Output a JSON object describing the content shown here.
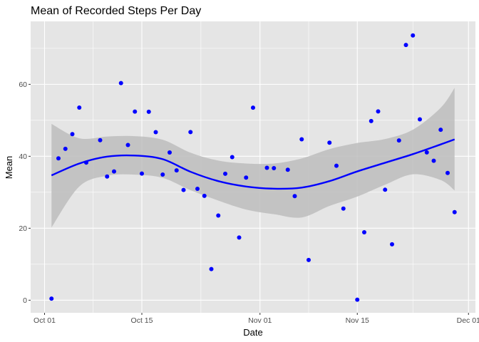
{
  "chart_data": {
    "type": "scatter",
    "title": "Mean of Recorded Steps Per Day",
    "xlabel": "Date",
    "ylabel": "Mean",
    "x_ticks": [
      "Oct 01",
      "Oct 15",
      "Nov 01",
      "Nov 15",
      "Dec 01"
    ],
    "x_tick_dates": [
      "2012-10-01",
      "2012-10-15",
      "2012-11-01",
      "2012-11-15",
      "2012-12-01"
    ],
    "y_ticks": [
      0,
      20,
      40,
      60
    ],
    "xlim": [
      "2012-09-29",
      "2012-12-02"
    ],
    "ylim": [
      -3.5,
      77.5
    ],
    "grid": true,
    "colors": {
      "panel": "#e5e5e5",
      "grid": "#ffffff",
      "points": "#0000ff",
      "smooth_line": "#0000ff",
      "ribbon": "#bdbdbd"
    },
    "series": [
      {
        "type": "points",
        "x": [
          "2012-10-02",
          "2012-10-03",
          "2012-10-04",
          "2012-10-05",
          "2012-10-06",
          "2012-10-07",
          "2012-10-09",
          "2012-10-10",
          "2012-10-11",
          "2012-10-12",
          "2012-10-13",
          "2012-10-14",
          "2012-10-15",
          "2012-10-16",
          "2012-10-17",
          "2012-10-18",
          "2012-10-19",
          "2012-10-20",
          "2012-10-21",
          "2012-10-22",
          "2012-10-23",
          "2012-10-24",
          "2012-10-25",
          "2012-10-26",
          "2012-10-27",
          "2012-10-28",
          "2012-10-29",
          "2012-10-30",
          "2012-10-31",
          "2012-11-02",
          "2012-11-03",
          "2012-11-05",
          "2012-11-06",
          "2012-11-07",
          "2012-11-08",
          "2012-11-11",
          "2012-11-12",
          "2012-11-13",
          "2012-11-15",
          "2012-11-16",
          "2012-11-17",
          "2012-11-18",
          "2012-11-19",
          "2012-11-20",
          "2012-11-21",
          "2012-11-22",
          "2012-11-23",
          "2012-11-24",
          "2012-11-25",
          "2012-11-26",
          "2012-11-27",
          "2012-11-28",
          "2012-11-29"
        ],
        "y": [
          0.44,
          39.42,
          42.07,
          46.16,
          53.54,
          38.25,
          44.48,
          34.38,
          35.78,
          60.35,
          43.15,
          52.42,
          35.2,
          52.38,
          46.71,
          34.92,
          41.07,
          36.09,
          30.63,
          46.74,
          30.97,
          29.01,
          8.65,
          23.53,
          35.14,
          39.78,
          17.42,
          34.09,
          53.52,
          36.81,
          36.7,
          36.25,
          28.94,
          44.73,
          11.18,
          43.78,
          37.38,
          25.47,
          0.14,
          18.89,
          49.79,
          52.47,
          30.7,
          15.53,
          44.4,
          70.93,
          73.59,
          50.27,
          41.09,
          38.76,
          47.38,
          35.36,
          24.47
        ]
      },
      {
        "type": "smooth",
        "x": [
          "2012-10-02",
          "2012-10-06",
          "2012-10-10",
          "2012-10-14",
          "2012-10-18",
          "2012-10-22",
          "2012-10-26",
          "2012-10-30",
          "2012-11-03",
          "2012-11-07",
          "2012-11-11",
          "2012-11-15",
          "2012-11-19",
          "2012-11-23",
          "2012-11-27",
          "2012-11-29"
        ],
        "y": [
          34.7,
          38.0,
          39.9,
          40.2,
          39.2,
          35.7,
          33.1,
          31.6,
          31.0,
          31.3,
          33.1,
          35.8,
          38.2,
          40.6,
          43.3,
          44.7
        ],
        "ci_lower": [
          20.2,
          31.6,
          34.6,
          34.9,
          34.0,
          30.6,
          27.7,
          25.2,
          23.9,
          23.0,
          26.2,
          28.8,
          32.1,
          35.0,
          33.4,
          30.5
        ],
        "ci_upper": [
          49.0,
          45.0,
          45.5,
          45.6,
          44.6,
          41.0,
          38.8,
          38.0,
          38.0,
          39.4,
          42.0,
          43.7,
          44.8,
          47.4,
          53.5,
          59.0
        ]
      }
    ]
  }
}
